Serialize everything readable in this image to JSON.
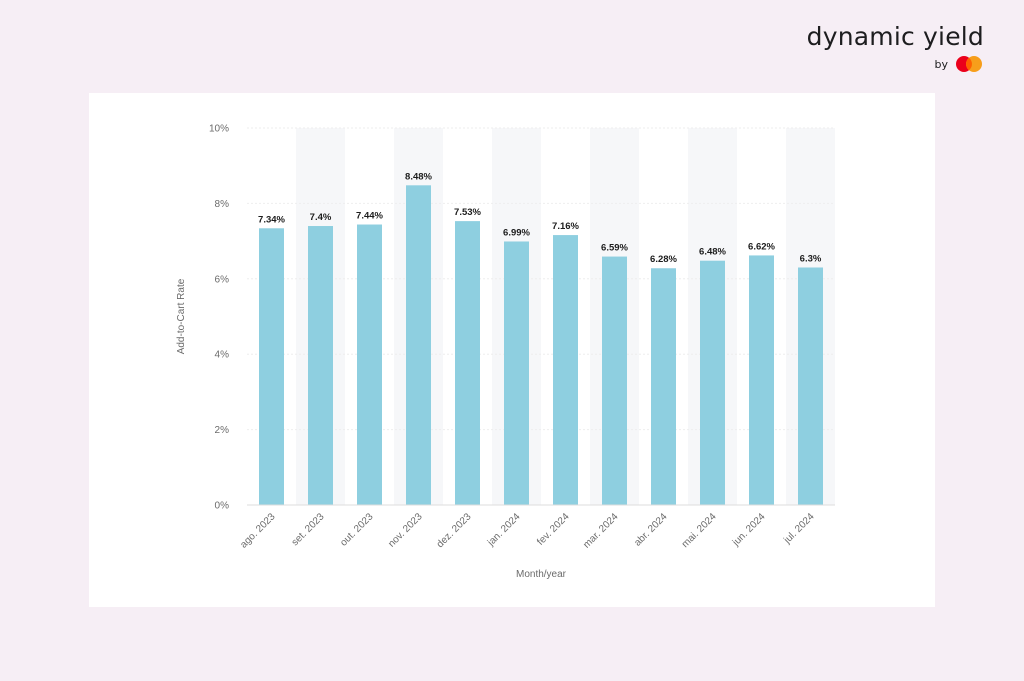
{
  "brand": {
    "name": "dynamic yield",
    "by": "by",
    "logo_icon": "mastercard-icon"
  },
  "chart_data": {
    "type": "bar",
    "categories": [
      "ago. 2023",
      "set. 2023",
      "out. 2023",
      "nov. 2023",
      "dez. 2023",
      "jan. 2024",
      "fev. 2024",
      "mar. 2024",
      "abr. 2024",
      "mai. 2024",
      "jun. 2024",
      "jul. 2024"
    ],
    "values": [
      7.34,
      7.4,
      7.44,
      8.48,
      7.53,
      6.99,
      7.16,
      6.59,
      6.28,
      6.48,
      6.62,
      6.3
    ],
    "data_labels": [
      "7.34%",
      "7.4%",
      "7.44%",
      "8.48%",
      "7.53%",
      "6.99%",
      "7.16%",
      "6.59%",
      "6.28%",
      "6.48%",
      "6.62%",
      "6.3%"
    ],
    "xlabel": "Month/year",
    "ylabel": "Add-to-Cart Rate",
    "ylim": [
      0,
      10
    ],
    "yticks": [
      0,
      2,
      4,
      6,
      8,
      10
    ],
    "ytick_labels": [
      "0%",
      "2%",
      "4%",
      "6%",
      "8%",
      "10%"
    ],
    "grid": true,
    "bar_color": "#8ecfe0",
    "band_color": "#f6f7f9"
  }
}
